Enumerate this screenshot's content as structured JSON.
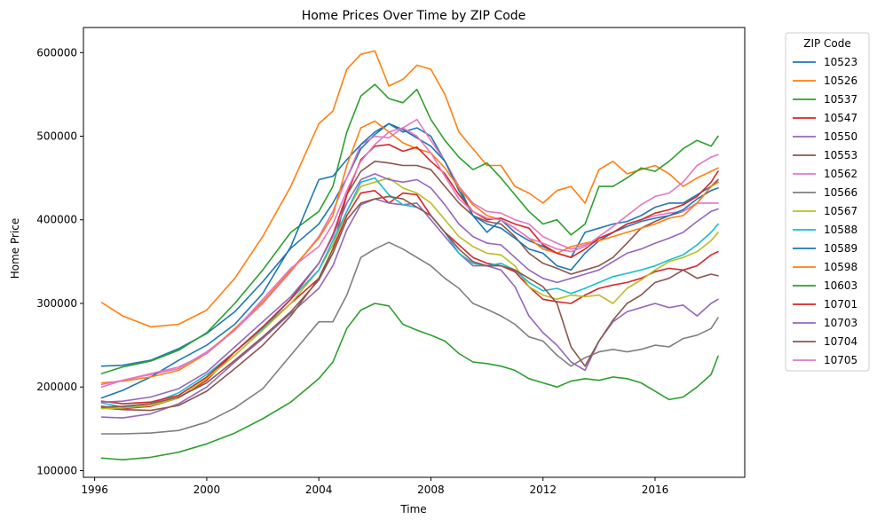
{
  "chart_data": {
    "type": "line",
    "title": "Home Prices Over Time by ZIP Code",
    "xlabel": "Time",
    "ylabel": "Home Price",
    "xlim": [
      1995.6,
      2019.2
    ],
    "ylim": [
      92000,
      630000
    ],
    "x_ticks": [
      1996,
      2000,
      2004,
      2008,
      2012,
      2016
    ],
    "x_tick_labels": [
      "1996",
      "2000",
      "2004",
      "2008",
      "2012",
      "2016"
    ],
    "y_ticks": [
      100000,
      200000,
      300000,
      400000,
      500000,
      600000
    ],
    "y_tick_labels": [
      "100000",
      "200000",
      "300000",
      "400000",
      "500000",
      "600000"
    ],
    "grid": false,
    "legend": {
      "title": "ZIP Code",
      "placement": "outside-right"
    },
    "x": [
      1996.25,
      1997,
      1998,
      1999,
      2000,
      2001,
      2002,
      2003,
      2004,
      2004.5,
      2005,
      2005.5,
      2006,
      2006.5,
      2007,
      2007.5,
      2008,
      2008.5,
      2009,
      2009.5,
      2010,
      2010.5,
      2011,
      2011.5,
      2012,
      2012.5,
      2013,
      2013.5,
      2014,
      2014.5,
      2015,
      2015.5,
      2016,
      2016.5,
      2017,
      2017.5,
      2018,
      2018.25
    ],
    "series": [
      {
        "name": "10523",
        "color": "#1f77b4",
        "values": [
          225000,
          226000,
          232000,
          246000,
          264000,
          290000,
          326000,
          366000,
          395000,
          420000,
          450000,
          485000,
          502000,
          515000,
          505000,
          510000,
          500000,
          470000,
          440000,
          405000,
          385000,
          400000,
          385000,
          375000,
          368000,
          360000,
          355000,
          385000,
          390000,
          395000,
          398000,
          405000,
          415000,
          420000,
          420000,
          430000,
          440000,
          445000
        ]
      },
      {
        "name": "10526",
        "color": "#ff7f0e",
        "values": [
          301000,
          285000,
          272000,
          275000,
          292000,
          330000,
          380000,
          440000,
          515000,
          530000,
          580000,
          598000,
          602000,
          560000,
          568000,
          585000,
          580000,
          550000,
          505000,
          485000,
          465000,
          465000,
          440000,
          432000,
          420000,
          435000,
          440000,
          420000,
          460000,
          470000,
          455000,
          460000,
          465000,
          455000,
          440000,
          450000,
          458000,
          462000
        ]
      },
      {
        "name": "10537",
        "color": "#2ca02c",
        "values": [
          216000,
          224000,
          231000,
          244000,
          265000,
          300000,
          340000,
          385000,
          410000,
          440000,
          505000,
          548000,
          562000,
          545000,
          540000,
          556000,
          520000,
          495000,
          475000,
          460000,
          468000,
          450000,
          430000,
          410000,
          395000,
          400000,
          382000,
          395000,
          440000,
          440000,
          450000,
          462000,
          458000,
          470000,
          485000,
          495000,
          488000,
          500000
        ]
      },
      {
        "name": "10547",
        "color": "#d62728",
        "values": [
          177000,
          174000,
          177000,
          187000,
          208000,
          242000,
          270000,
          300000,
          330000,
          365000,
          405000,
          432000,
          435000,
          420000,
          432000,
          430000,
          405000,
          385000,
          370000,
          355000,
          348000,
          345000,
          338000,
          320000,
          305000,
          302000,
          300000,
          310000,
          318000,
          322000,
          325000,
          330000,
          338000,
          342000,
          340000,
          345000,
          358000,
          362000
        ]
      },
      {
        "name": "10550",
        "color": "#9467bd",
        "values": [
          164000,
          163000,
          168000,
          180000,
          200000,
          230000,
          258000,
          288000,
          318000,
          345000,
          388000,
          418000,
          425000,
          420000,
          418000,
          420000,
          400000,
          380000,
          360000,
          345000,
          345000,
          340000,
          320000,
          285000,
          265000,
          250000,
          230000,
          220000,
          255000,
          278000,
          290000,
          295000,
          300000,
          295000,
          298000,
          285000,
          300000,
          305000
        ]
      },
      {
        "name": "10553",
        "color": "#8c564b",
        "values": [
          175000,
          173000,
          172000,
          178000,
          195000,
          222000,
          250000,
          285000,
          330000,
          365000,
          430000,
          458000,
          470000,
          468000,
          465000,
          465000,
          460000,
          440000,
          420000,
          405000,
          398000,
          395000,
          380000,
          360000,
          348000,
          342000,
          335000,
          340000,
          345000,
          355000,
          372000,
          390000,
          398000,
          405000,
          410000,
          420000,
          440000,
          448000
        ]
      },
      {
        "name": "10562",
        "color": "#e377c2",
        "values": [
          200000,
          208000,
          215000,
          222000,
          242000,
          268000,
          300000,
          338000,
          380000,
          410000,
          450000,
          490000,
          500000,
          498000,
          510000,
          520000,
          495000,
          470000,
          440000,
          420000,
          410000,
          408000,
          400000,
          395000,
          380000,
          372000,
          365000,
          370000,
          375000,
          385000,
          395000,
          400000,
          405000,
          408000,
          410000,
          420000,
          420000,
          420000
        ]
      },
      {
        "name": "10566",
        "color": "#7f7f7f",
        "values": [
          144000,
          144000,
          145000,
          148000,
          158000,
          175000,
          198000,
          238000,
          278000,
          278000,
          310000,
          355000,
          365000,
          373000,
          365000,
          355000,
          345000,
          330000,
          318000,
          300000,
          293000,
          285000,
          275000,
          260000,
          255000,
          238000,
          225000,
          235000,
          242000,
          245000,
          242000,
          245000,
          250000,
          248000,
          258000,
          262000,
          270000,
          283000
        ]
      },
      {
        "name": "10567",
        "color": "#bcbd22",
        "values": [
          174000,
          175000,
          178000,
          187000,
          210000,
          238000,
          268000,
          300000,
          340000,
          370000,
          410000,
          440000,
          445000,
          450000,
          438000,
          432000,
          420000,
          400000,
          380000,
          368000,
          360000,
          358000,
          345000,
          320000,
          310000,
          305000,
          310000,
          308000,
          310000,
          300000,
          318000,
          328000,
          340000,
          350000,
          355000,
          362000,
          375000,
          385000
        ]
      },
      {
        "name": "10588",
        "color": "#17becf",
        "values": [
          181000,
          176000,
          180000,
          193000,
          215000,
          242000,
          270000,
          305000,
          340000,
          375000,
          410000,
          445000,
          450000,
          430000,
          418000,
          415000,
          405000,
          385000,
          360000,
          348000,
          345000,
          348000,
          340000,
          325000,
          315000,
          318000,
          312000,
          318000,
          325000,
          332000,
          336000,
          340000,
          345000,
          352000,
          358000,
          370000,
          385000,
          395000
        ]
      },
      {
        "name": "10589",
        "color": "#1f77b4",
        "values": [
          187000,
          196000,
          212000,
          232000,
          250000,
          275000,
          312000,
          368000,
          448000,
          452000,
          472000,
          490000,
          505000,
          515000,
          508000,
          498000,
          488000,
          470000,
          435000,
          405000,
          395000,
          390000,
          378000,
          365000,
          360000,
          345000,
          340000,
          360000,
          375000,
          385000,
          392000,
          398000,
          402000,
          405000,
          412000,
          425000,
          435000,
          438000
        ]
      },
      {
        "name": "10598",
        "color": "#ff7f0e",
        "values": [
          205000,
          207000,
          212000,
          220000,
          240000,
          270000,
          302000,
          340000,
          378000,
          405000,
          465000,
          510000,
          518000,
          505000,
          492000,
          485000,
          480000,
          462000,
          438000,
          418000,
          405000,
          400000,
          390000,
          378000,
          365000,
          360000,
          368000,
          372000,
          375000,
          380000,
          385000,
          390000,
          395000,
          402000,
          405000,
          420000,
          440000,
          445000
        ]
      },
      {
        "name": "10603",
        "color": "#2ca02c",
        "values": [
          115000,
          113000,
          116000,
          122000,
          132000,
          145000,
          162000,
          182000,
          210000,
          230000,
          270000,
          292000,
          300000,
          297000,
          275000,
          268000,
          262000,
          255000,
          240000,
          230000,
          228000,
          225000,
          220000,
          210000,
          205000,
          200000,
          207000,
          210000,
          208000,
          212000,
          210000,
          205000,
          195000,
          185000,
          188000,
          200000,
          215000,
          237000
        ]
      },
      {
        "name": "10701",
        "color": "#d62728",
        "values": [
          183000,
          180000,
          182000,
          190000,
          212000,
          242000,
          272000,
          305000,
          348000,
          382000,
          430000,
          472000,
          488000,
          490000,
          482000,
          487000,
          470000,
          455000,
          430000,
          410000,
          400000,
          402000,
          395000,
          390000,
          370000,
          360000,
          355000,
          365000,
          378000,
          385000,
          395000,
          400000,
          408000,
          412000,
          418000,
          428000,
          445000,
          458000
        ]
      },
      {
        "name": "10703",
        "color": "#9467bd",
        "values": [
          182000,
          183000,
          188000,
          198000,
          218000,
          248000,
          278000,
          308000,
          348000,
          380000,
          420000,
          448000,
          455000,
          448000,
          445000,
          448000,
          438000,
          418000,
          395000,
          380000,
          372000,
          370000,
          355000,
          340000,
          330000,
          325000,
          330000,
          335000,
          340000,
          350000,
          360000,
          365000,
          372000,
          378000,
          385000,
          398000,
          410000,
          413000
        ]
      },
      {
        "name": "10704",
        "color": "#8c564b",
        "values": [
          176000,
          177000,
          180000,
          188000,
          205000,
          232000,
          260000,
          290000,
          328000,
          360000,
          400000,
          420000,
          425000,
          428000,
          425000,
          415000,
          405000,
          385000,
          365000,
          350000,
          345000,
          345000,
          340000,
          330000,
          320000,
          300000,
          248000,
          225000,
          255000,
          280000,
          300000,
          310000,
          325000,
          330000,
          340000,
          330000,
          335000,
          333000
        ]
      },
      {
        "name": "10705",
        "color": "#e377c2",
        "values": [
          203000,
          208000,
          216000,
          224000,
          240000,
          268000,
          305000,
          342000,
          368000,
          395000,
          435000,
          470000,
          490000,
          505000,
          510000,
          500000,
          480000,
          452000,
          425000,
          410000,
          402000,
          400000,
          390000,
          378000,
          372000,
          365000,
          362000,
          368000,
          380000,
          392000,
          405000,
          418000,
          428000,
          432000,
          445000,
          465000,
          475000,
          478000
        ]
      }
    ]
  }
}
